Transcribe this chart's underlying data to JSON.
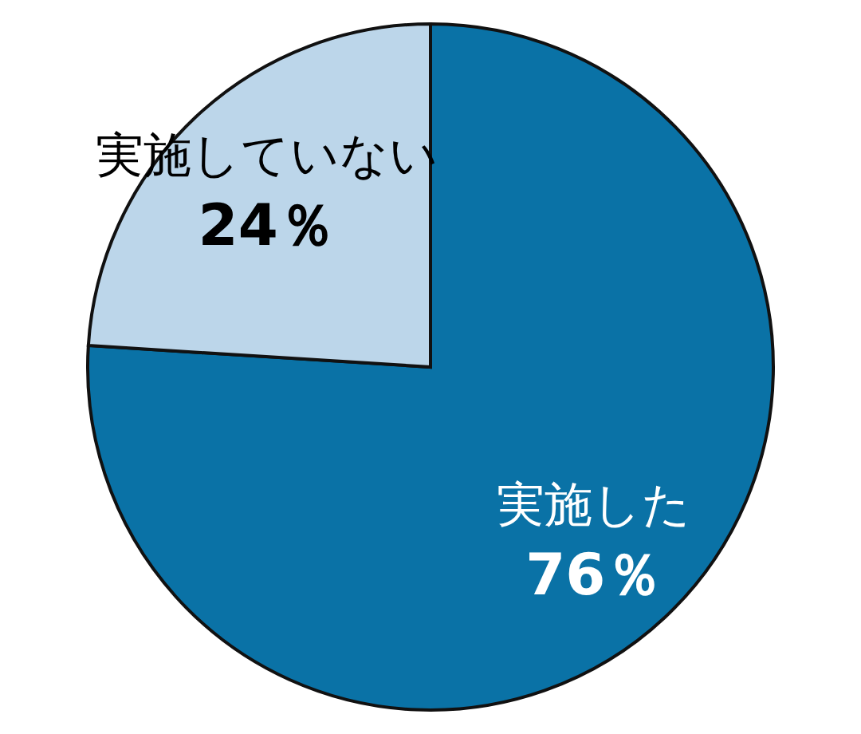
{
  "chart_data": {
    "type": "pie",
    "categories": [
      "実施した",
      "実施していない"
    ],
    "values": [
      76,
      24
    ],
    "colors": [
      "#0a72a6",
      "#bcd6ea"
    ],
    "value_labels": [
      "76％",
      "24％"
    ]
  }
}
